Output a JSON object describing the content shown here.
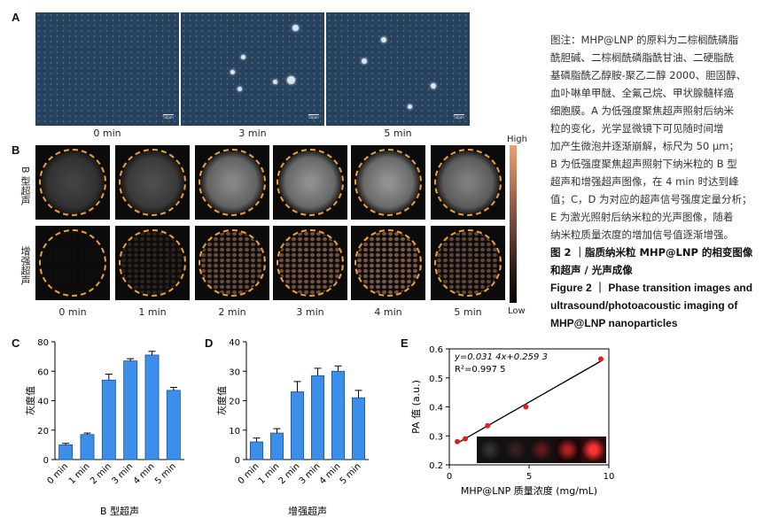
{
  "panel_labels": {
    "a": "A",
    "b": "B",
    "c": "C",
    "d": "D",
    "e": "E"
  },
  "panel_a": {
    "scale_text": "50μm",
    "times": [
      "0 min",
      "3 min",
      "5 min"
    ]
  },
  "panel_b": {
    "row_labels": [
      "B 型超声",
      "增强超声"
    ],
    "times": [
      "0 min",
      "1 min",
      "2 min",
      "3 min",
      "4 min",
      "5 min"
    ],
    "colorbar_high": "High",
    "colorbar_low": "Low",
    "b_mode_brightness": [
      0.15,
      0.22,
      0.55,
      0.6,
      0.62,
      0.5
    ],
    "contrast_density": [
      0.02,
      0.2,
      0.55,
      0.6,
      0.65,
      0.5
    ]
  },
  "chart_data": [
    {
      "type": "bar",
      "categories": [
        "0 min",
        "1 min",
        "2 min",
        "3 min",
        "4 min",
        "5 min"
      ],
      "values": [
        10,
        17,
        54,
        67,
        71,
        47
      ],
      "errors": [
        1,
        1,
        4,
        1.5,
        2.5,
        2
      ],
      "ylabel": "灰度值",
      "xlabel": "B 型超声",
      "ylim": [
        0,
        80
      ],
      "yticks": [
        0,
        20,
        40,
        60,
        80
      ],
      "color": "#3c8fe8"
    },
    {
      "type": "bar",
      "categories": [
        "0 min",
        "1 min",
        "2 min",
        "3 min",
        "4 min",
        "5 min"
      ],
      "values": [
        6,
        9,
        23,
        28.5,
        30,
        21
      ],
      "errors": [
        1.3,
        1.5,
        3.5,
        2.5,
        1.8,
        2.5
      ],
      "ylabel": "灰度值",
      "xlabel": "增强超声",
      "ylim": [
        0,
        40
      ],
      "yticks": [
        0,
        10,
        20,
        30,
        40
      ],
      "color": "#3c8fe8"
    },
    {
      "type": "scatter",
      "x": [
        0.5,
        1.0,
        2.4,
        4.8,
        9.5
      ],
      "y": [
        0.28,
        0.29,
        0.335,
        0.4,
        0.565
      ],
      "fit_slope": 0.0314,
      "fit_intercept": 0.2593,
      "equation": "y=0.031 4x+0.259 3",
      "r2": "R²=0.997 5",
      "ylabel": "PA 值 (a.u.)",
      "xlabel": "MHP@LNP 质量浓度 (mg/mL)",
      "xlim": [
        0,
        10
      ],
      "ylim": [
        0.2,
        0.6
      ],
      "xticks": [
        0,
        5,
        10
      ],
      "yticks": [
        0.2,
        0.3,
        0.4,
        0.5,
        0.6
      ],
      "point_color": "#e02020",
      "line_color": "#000000"
    }
  ],
  "caption": {
    "lines": [
      "图注：MHP@LNP 的原料为二棕榈酰磷脂",
      "酰胆碱、二棕榈酰磷脂酰甘油、二硬脂酰",
      "基磷脂酰乙醇胺-聚乙二醇 2000、胆固醇、",
      "血卟啉单甲醚、全氟己烷、甲状腺髓样癌",
      "细胞膜。A 为低强度聚焦超声照射后纳米",
      "粒的变化，光学显微镜下可见随时间增",
      "加产生微泡并逐渐崩解，标尺为 50 μm；",
      "B 为低强度聚焦超声照射下纳米粒的 B 型",
      "超声和增强超声图像，在 4 min 时达到峰",
      "值；C，D 为对应的超声信号强度定量分析；",
      "E 为激光照射后纳米粒的光声图像，随着",
      "纳米粒质量浓度的增加信号值逐渐增强。"
    ],
    "figure_title_cn": [
      "图 2 ｜脂质纳米粒 MHP@LNP 的相变图像",
      "和超声 / 光声成像"
    ],
    "figure_title_en": [
      "Figure 2 ｜ Phase transition images and",
      "ultrasound/photoacoustic imaging of",
      "MHP@LNP nanoparticles"
    ]
  }
}
